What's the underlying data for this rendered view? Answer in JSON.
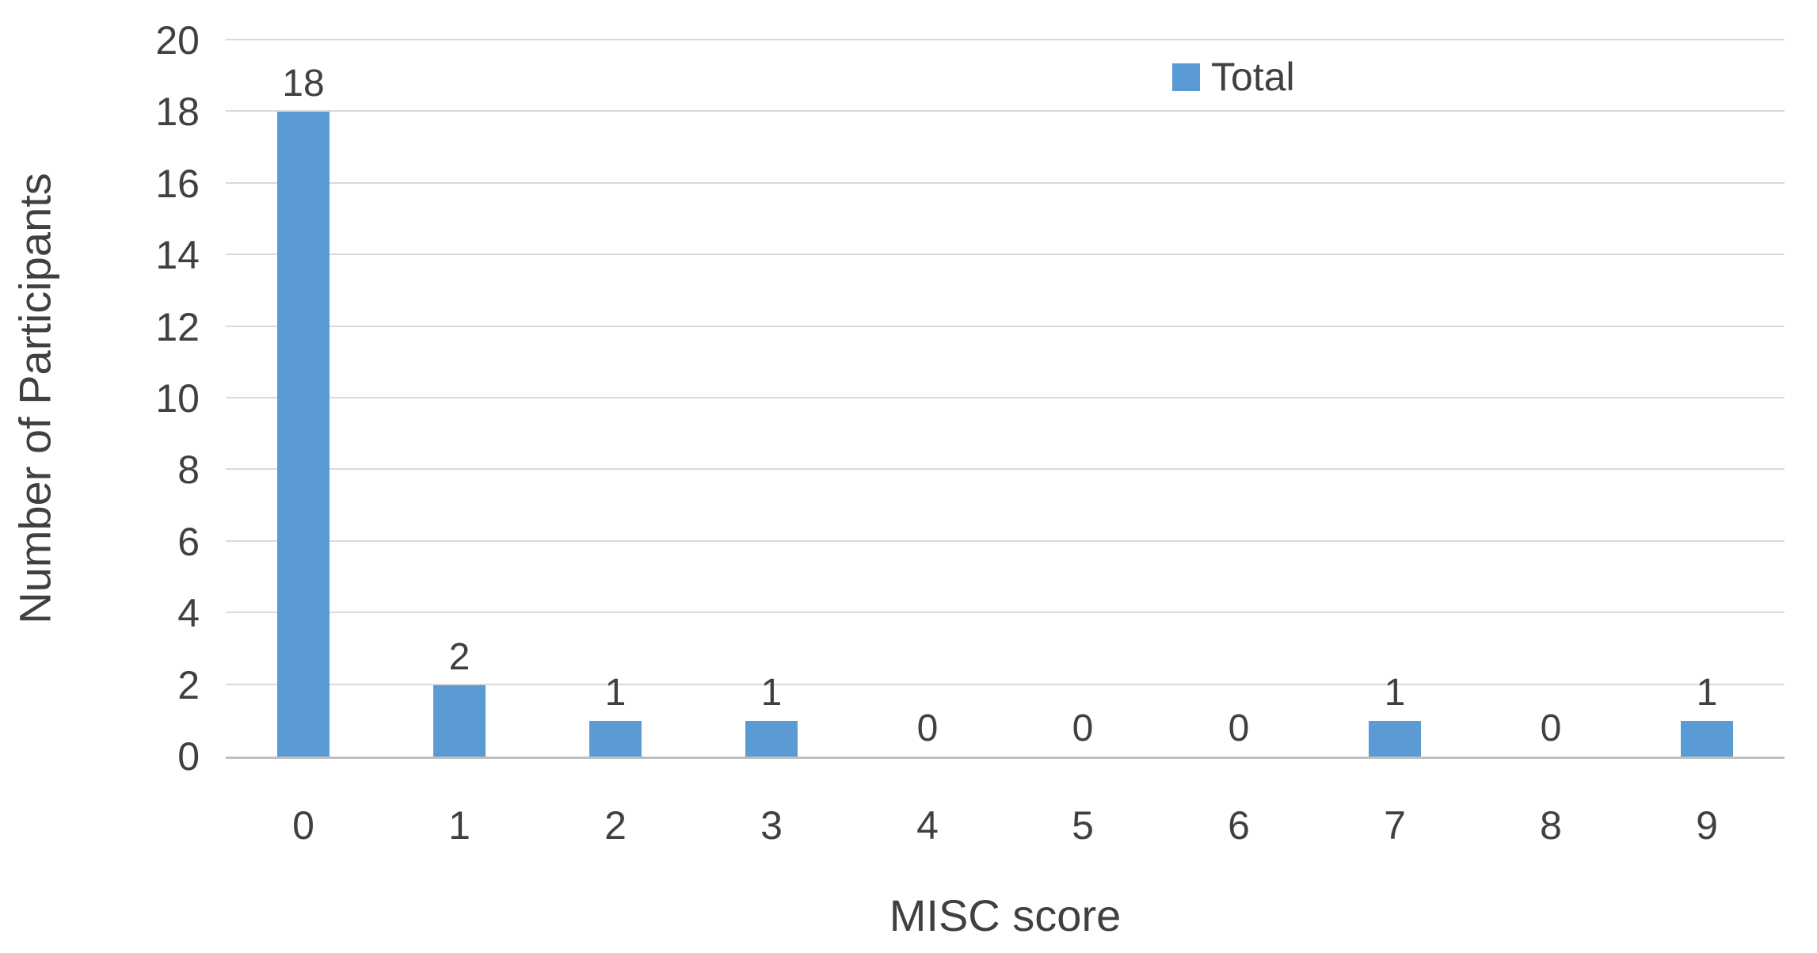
{
  "chart_data": {
    "type": "bar",
    "categories": [
      "0",
      "1",
      "2",
      "3",
      "4",
      "5",
      "6",
      "7",
      "8",
      "9"
    ],
    "series": [
      {
        "name": "Total",
        "values": [
          18,
          2,
          1,
          1,
          0,
          0,
          0,
          1,
          0,
          1
        ]
      }
    ],
    "data_labels": [
      "18",
      "2",
      "1",
      "1",
      "0",
      "0",
      "0",
      "1",
      "0",
      "1"
    ],
    "xlabel": "MISC score",
    "ylabel": "Number of Participants",
    "ylim": [
      0,
      20
    ],
    "yticks": [
      0,
      2,
      4,
      6,
      8,
      10,
      12,
      14,
      16,
      18,
      20
    ],
    "grid": "horizontal",
    "legend": {
      "label": "Total",
      "position": "top"
    },
    "colors": {
      "bar": "#5B9BD5",
      "gridline": "#D9D9D9",
      "axis_line": "#BFBFBF",
      "text": "#404040"
    }
  }
}
